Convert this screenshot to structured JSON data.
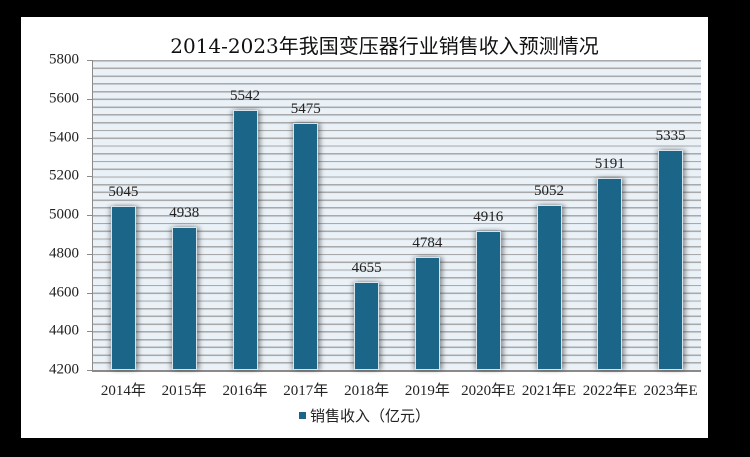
{
  "chart_data": {
    "type": "bar",
    "title": "2014-2023年我国变压器行业销售收入预测情况",
    "categories": [
      "2014年",
      "2015年",
      "2016年",
      "2017年",
      "2018年",
      "2019年",
      "2020年E",
      "2021年E",
      "2022年E",
      "2023年E"
    ],
    "series": [
      {
        "name": "销售收入（亿元）",
        "values": [
          5045,
          4938,
          5542,
          5475,
          4655,
          4784,
          4916,
          5052,
          5191,
          5335
        ],
        "color": "#1b6688"
      }
    ],
    "xlabel": "",
    "ylabel": "",
    "ylim": [
      4200,
      5800
    ],
    "yticks": [
      4200,
      4400,
      4600,
      4800,
      5000,
      5200,
      5400,
      5600,
      5800
    ],
    "grid": true,
    "legend_position": "bottom",
    "data_labels": true
  },
  "chart": {
    "title": "2014-2023年我国变压器行业销售收入预测情况",
    "legend_label": "销售收入（亿元）",
    "y_ticks": [
      "5800",
      "5600",
      "5400",
      "5200",
      "5000",
      "4800",
      "4600",
      "4400",
      "4200"
    ],
    "x_labels": [
      "2014年",
      "2015年",
      "2016年",
      "2017年",
      "2018年",
      "2019年",
      "2020年E",
      "2021年E",
      "2022年E",
      "2023年E"
    ],
    "value_labels": [
      "5045",
      "4938",
      "5542",
      "5475",
      "4655",
      "4784",
      "4916",
      "5052",
      "5191",
      "5335"
    ]
  }
}
